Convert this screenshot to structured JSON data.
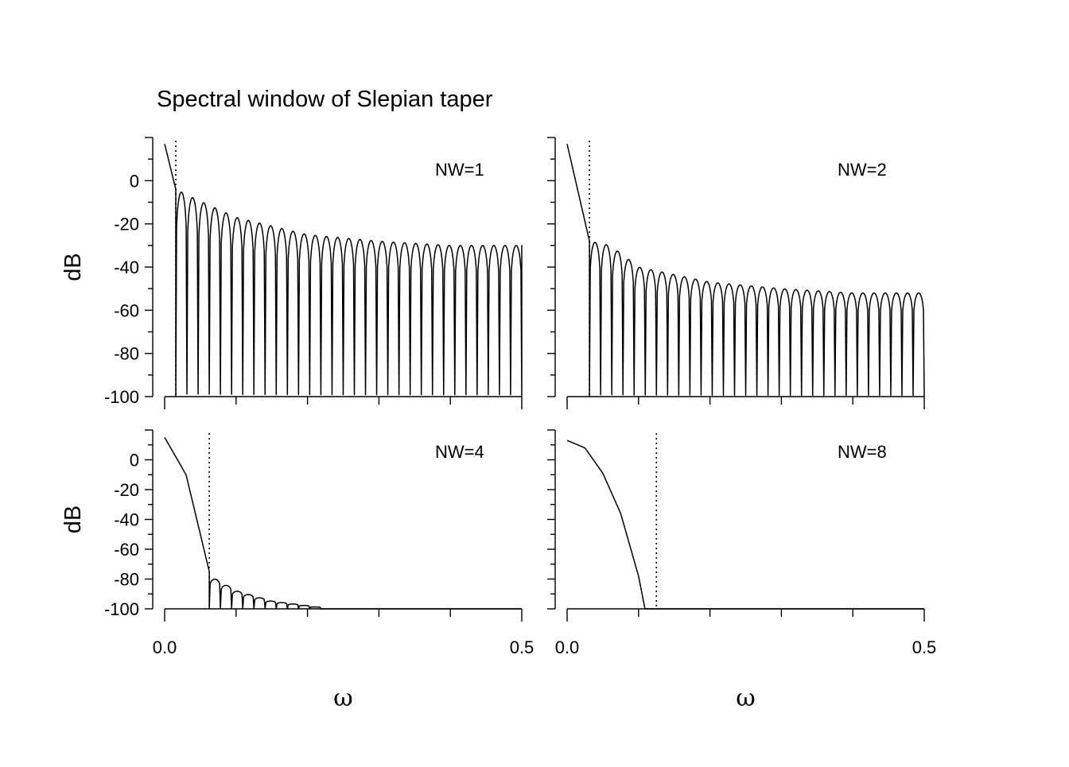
{
  "title": "Spectral window of Slepian taper",
  "chart_data": [
    {
      "type": "line",
      "panel_label": "NW=1",
      "nw": 1,
      "bandwidth_line": 0.0156,
      "ylabel": "dB",
      "xlabel": "",
      "xlim": [
        0,
        0.5
      ],
      "ylim": [
        -100,
        20
      ],
      "yticks": [
        "0",
        "-20",
        "-40",
        "-60",
        "-80",
        "-100"
      ],
      "xticks": [],
      "series": [
        {
          "shape": "sidelobes",
          "x": [
            0.0,
            0.0156,
            0.04,
            0.1,
            0.2,
            0.3,
            0.4,
            0.5
          ],
          "y": [
            17,
            -4,
            -8,
            -17,
            -25,
            -28,
            -30,
            -30
          ]
        }
      ]
    },
    {
      "type": "line",
      "panel_label": "NW=2",
      "nw": 2,
      "bandwidth_line": 0.0313,
      "ylabel": "",
      "xlabel": "",
      "xlim": [
        0,
        0.5
      ],
      "ylim": [
        -100,
        20
      ],
      "yticks": [],
      "xticks": [],
      "series": [
        {
          "shape": "sidelobes",
          "x": [
            0.0,
            0.0313,
            0.06,
            0.1,
            0.2,
            0.3,
            0.4,
            0.5
          ],
          "y": [
            17,
            -28,
            -30,
            -40,
            -47,
            -50,
            -52,
            -52
          ]
        }
      ]
    },
    {
      "type": "line",
      "panel_label": "NW=4",
      "nw": 4,
      "bandwidth_line": 0.0625,
      "ylabel": "dB",
      "xlabel": "ω",
      "xlim": [
        0,
        0.5
      ],
      "ylim": [
        -100,
        20
      ],
      "yticks": [
        "0",
        "-20",
        "-40",
        "-60",
        "-80",
        "-100"
      ],
      "xticks": [
        "0.0",
        "0.5"
      ],
      "series": [
        {
          "shape": "sidelobes",
          "x": [
            0.0,
            0.03,
            0.0625,
            0.07,
            0.1,
            0.15,
            0.2,
            0.23
          ],
          "y": [
            15,
            -10,
            -75,
            -80,
            -88,
            -95,
            -98,
            -100
          ]
        }
      ]
    },
    {
      "type": "line",
      "panel_label": "NW=8",
      "nw": 8,
      "bandwidth_line": 0.125,
      "ylabel": "",
      "xlabel": "ω",
      "xlim": [
        0,
        0.5
      ],
      "ylim": [
        -100,
        20
      ],
      "yticks": [],
      "xticks": [
        "0.0",
        "0.5"
      ],
      "series": [
        {
          "shape": "mainlobe",
          "x": [
            0.0,
            0.025,
            0.05,
            0.075,
            0.1,
            0.109
          ],
          "y": [
            13,
            8,
            -9,
            -36,
            -78,
            -100
          ]
        }
      ]
    }
  ]
}
